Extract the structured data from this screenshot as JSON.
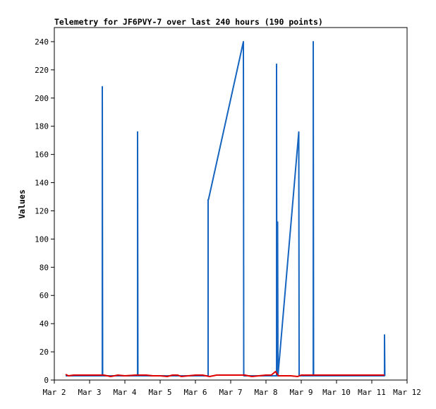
{
  "chart_data": {
    "type": "line",
    "title": "Telemetry for JF6PVY-7 over last 240 hours (190 points)",
    "xlabel": "",
    "ylabel": "Values",
    "xlim": [
      0,
      10
    ],
    "ylim": [
      0,
      250
    ],
    "x_ticks": [
      {
        "x": 0,
        "label": "Mar 2"
      },
      {
        "x": 1,
        "label": "Mar 3"
      },
      {
        "x": 2,
        "label": "Mar 4"
      },
      {
        "x": 3,
        "label": "Mar 5"
      },
      {
        "x": 4,
        "label": "Mar 6"
      },
      {
        "x": 5,
        "label": "Mar 7"
      },
      {
        "x": 6,
        "label": "Mar 8"
      },
      {
        "x": 7,
        "label": "Mar 9"
      },
      {
        "x": 8,
        "label": "Mar 10"
      },
      {
        "x": 9,
        "label": "Mar 11"
      },
      {
        "x": 10,
        "label": "Mar 12"
      }
    ],
    "y_ticks": [
      0,
      20,
      40,
      60,
      80,
      100,
      120,
      140,
      160,
      180,
      200,
      220,
      240
    ],
    "grid": false,
    "legend": "none",
    "series": [
      {
        "color": "#1565c0",
        "points": [
          [
            0.32,
            3
          ],
          [
            1.36,
            3
          ],
          [
            1.36,
            208
          ],
          [
            1.37,
            3
          ],
          [
            2.36,
            3
          ],
          [
            2.36,
            176
          ],
          [
            2.37,
            3
          ],
          [
            4.36,
            3
          ],
          [
            4.36,
            128
          ],
          [
            4.37,
            128
          ],
          [
            5.36,
            240
          ],
          [
            5.37,
            3
          ],
          [
            6.3,
            3
          ],
          [
            6.3,
            224
          ],
          [
            6.31,
            3
          ],
          [
            6.33,
            3
          ],
          [
            6.33,
            112
          ],
          [
            6.34,
            3
          ],
          [
            6.93,
            176
          ],
          [
            6.94,
            3
          ],
          [
            7.34,
            3
          ],
          [
            7.34,
            240
          ],
          [
            7.35,
            3
          ],
          [
            9.36,
            3
          ],
          [
            9.36,
            32
          ],
          [
            9.37,
            3
          ]
        ]
      },
      {
        "color": "#e00000",
        "points": [
          [
            0.32,
            4
          ],
          [
            0.4,
            3
          ],
          [
            0.55,
            3.5
          ],
          [
            0.75,
            3.5
          ],
          [
            1.0,
            3.5
          ],
          [
            1.2,
            3.5
          ],
          [
            1.4,
            3.5
          ],
          [
            1.6,
            2.5
          ],
          [
            1.8,
            3.5
          ],
          [
            2.0,
            3
          ],
          [
            2.3,
            3.5
          ],
          [
            2.6,
            3.5
          ],
          [
            2.8,
            3
          ],
          [
            3.0,
            3
          ],
          [
            3.2,
            2.5
          ],
          [
            3.35,
            3.5
          ],
          [
            3.5,
            3.5
          ],
          [
            3.6,
            2.5
          ],
          [
            3.8,
            3
          ],
          [
            4.0,
            3.5
          ],
          [
            4.2,
            3.5
          ],
          [
            4.4,
            2.5
          ],
          [
            4.6,
            3.5
          ],
          [
            4.8,
            3.5
          ],
          [
            5.0,
            3.5
          ],
          [
            5.2,
            3.5
          ],
          [
            5.4,
            3.5
          ],
          [
            5.6,
            2.5
          ],
          [
            5.8,
            3
          ],
          [
            6.0,
            3.5
          ],
          [
            6.15,
            3.5
          ],
          [
            6.27,
            6
          ],
          [
            6.35,
            3
          ],
          [
            6.5,
            3
          ],
          [
            6.7,
            3
          ],
          [
            6.9,
            2.5
          ],
          [
            7.0,
            3.5
          ],
          [
            7.5,
            3.5
          ],
          [
            8.0,
            3.5
          ],
          [
            8.5,
            3.5
          ],
          [
            9.0,
            3.5
          ],
          [
            9.36,
            3.5
          ]
        ]
      }
    ]
  }
}
